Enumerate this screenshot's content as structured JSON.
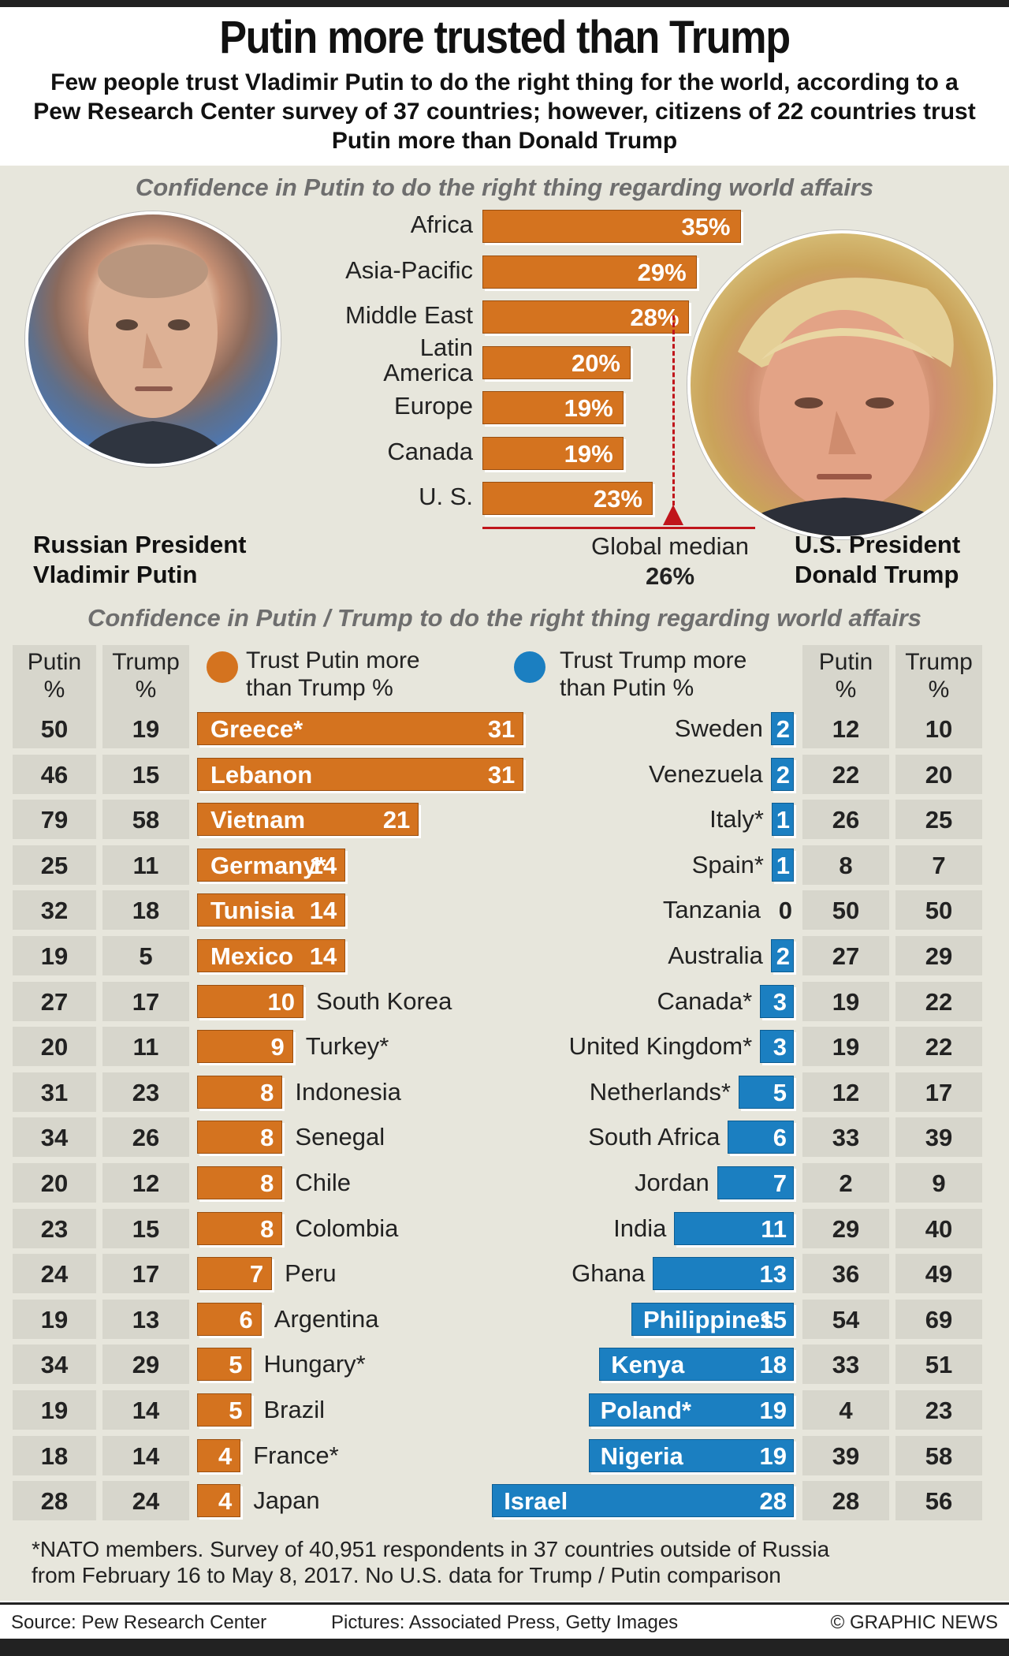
{
  "header": {
    "title": "Putin more trusted than Trump",
    "subtitle": "Few people trust Vladimir Putin to do the right thing for the world, according to a Pew Research Center survey of 37 countries; however, citizens of 22 countries trust Putin more than Donald Trump"
  },
  "portraits": {
    "putin_caption_line1": "Russian President",
    "putin_caption_line2": "Vladimir Putin",
    "trump_caption_line1": "U.S. President",
    "trump_caption_line2": "Donald Trump"
  },
  "colors": {
    "orange": "#d4731f",
    "blue": "#1b7fc1",
    "panel": "#e7e6dc",
    "median": "#c0151b"
  },
  "chart_data": [
    {
      "type": "bar",
      "orientation": "horizontal",
      "title": "Confidence in Putin to do the right thing regarding world affairs",
      "categories": [
        "Africa",
        "Asia-Pacific",
        "Middle East",
        "Latin America",
        "Europe",
        "Canada",
        "U. S."
      ],
      "category_lines": [
        [
          "Africa"
        ],
        [
          "Asia-Pacific"
        ],
        [
          "Middle East"
        ],
        [
          "Latin",
          "America"
        ],
        [
          "Europe"
        ],
        [
          "Canada"
        ],
        [
          "U. S."
        ]
      ],
      "values": [
        35,
        29,
        28,
        20,
        19,
        19,
        23
      ],
      "value_labels": [
        "35%",
        "29%",
        "28%",
        "20%",
        "19%",
        "19%",
        "23%"
      ],
      "unit": "%",
      "xlim": [
        0,
        35
      ],
      "median": {
        "label": "Global median",
        "value": 26,
        "value_label": "26%"
      }
    },
    {
      "type": "bar",
      "orientation": "horizontal-diverging",
      "title": "Confidence in Putin / Trump to do the right thing regarding world affairs",
      "left_headers": {
        "putin": [
          "Putin",
          "%"
        ],
        "trump": [
          "Trump",
          "%"
        ]
      },
      "right_headers": {
        "putin": [
          "Putin",
          "%"
        ],
        "trump": [
          "Trump",
          "%"
        ]
      },
      "legend": [
        {
          "name": "Trust Putin more than Trump %",
          "lines": [
            "Trust Putin more",
            "than Trump %"
          ],
          "color": "#d4731f"
        },
        {
          "name": "Trust Trump more than Putin %",
          "lines": [
            "Trust Trump more",
            "than Putin %"
          ],
          "color": "#1b7fc1"
        }
      ],
      "series": [
        {
          "name": "Trust Putin more than Trump",
          "countries": [
            "Greece*",
            "Lebanon",
            "Vietnam",
            "Germany*",
            "Tunisia",
            "Mexico",
            "South Korea",
            "Turkey*",
            "Indonesia",
            "Senegal",
            "Chile",
            "Colombia",
            "Peru",
            "Argentina",
            "Hungary*",
            "Brazil",
            "France*",
            "Japan"
          ],
          "values": [
            31,
            31,
            21,
            14,
            14,
            14,
            10,
            9,
            8,
            8,
            8,
            8,
            7,
            6,
            5,
            5,
            4,
            4
          ],
          "putin": [
            50,
            46,
            79,
            25,
            32,
            19,
            27,
            20,
            31,
            34,
            20,
            23,
            24,
            19,
            34,
            19,
            18,
            28
          ],
          "trump": [
            19,
            15,
            58,
            11,
            18,
            5,
            17,
            11,
            23,
            26,
            12,
            15,
            17,
            13,
            29,
            14,
            14,
            24
          ]
        },
        {
          "name": "Trust Trump more than Putin",
          "countries": [
            "Sweden",
            "Venezuela",
            "Italy*",
            "Spain*",
            "Tanzania",
            "Australia",
            "Canada*",
            "United Kingdom*",
            "Netherlands*",
            "South Africa",
            "Jordan",
            "India",
            "Ghana",
            "Philippines",
            "Kenya",
            "Poland*",
            "Nigeria",
            "Israel"
          ],
          "values": [
            2,
            2,
            1,
            1,
            0,
            2,
            3,
            3,
            5,
            6,
            7,
            11,
            13,
            15,
            18,
            19,
            19,
            28
          ],
          "putin": [
            12,
            22,
            26,
            8,
            50,
            27,
            19,
            19,
            12,
            33,
            2,
            29,
            36,
            54,
            33,
            4,
            39,
            28
          ],
          "trump": [
            10,
            20,
            25,
            7,
            50,
            29,
            22,
            22,
            17,
            39,
            9,
            40,
            49,
            69,
            51,
            23,
            58,
            56
          ]
        }
      ]
    }
  ],
  "footnote": {
    "line1": "*NATO members. Survey of 40,951 respondents in 37 countries outside of Russia",
    "line2": "from February 16 to May 8, 2017. No U.S. data for Trump / Putin comparison"
  },
  "footer": {
    "source": "Source: Pew Research Center",
    "pictures": "Pictures: Associated Press, Getty Images",
    "credit": "© GRAPHIC NEWS"
  }
}
